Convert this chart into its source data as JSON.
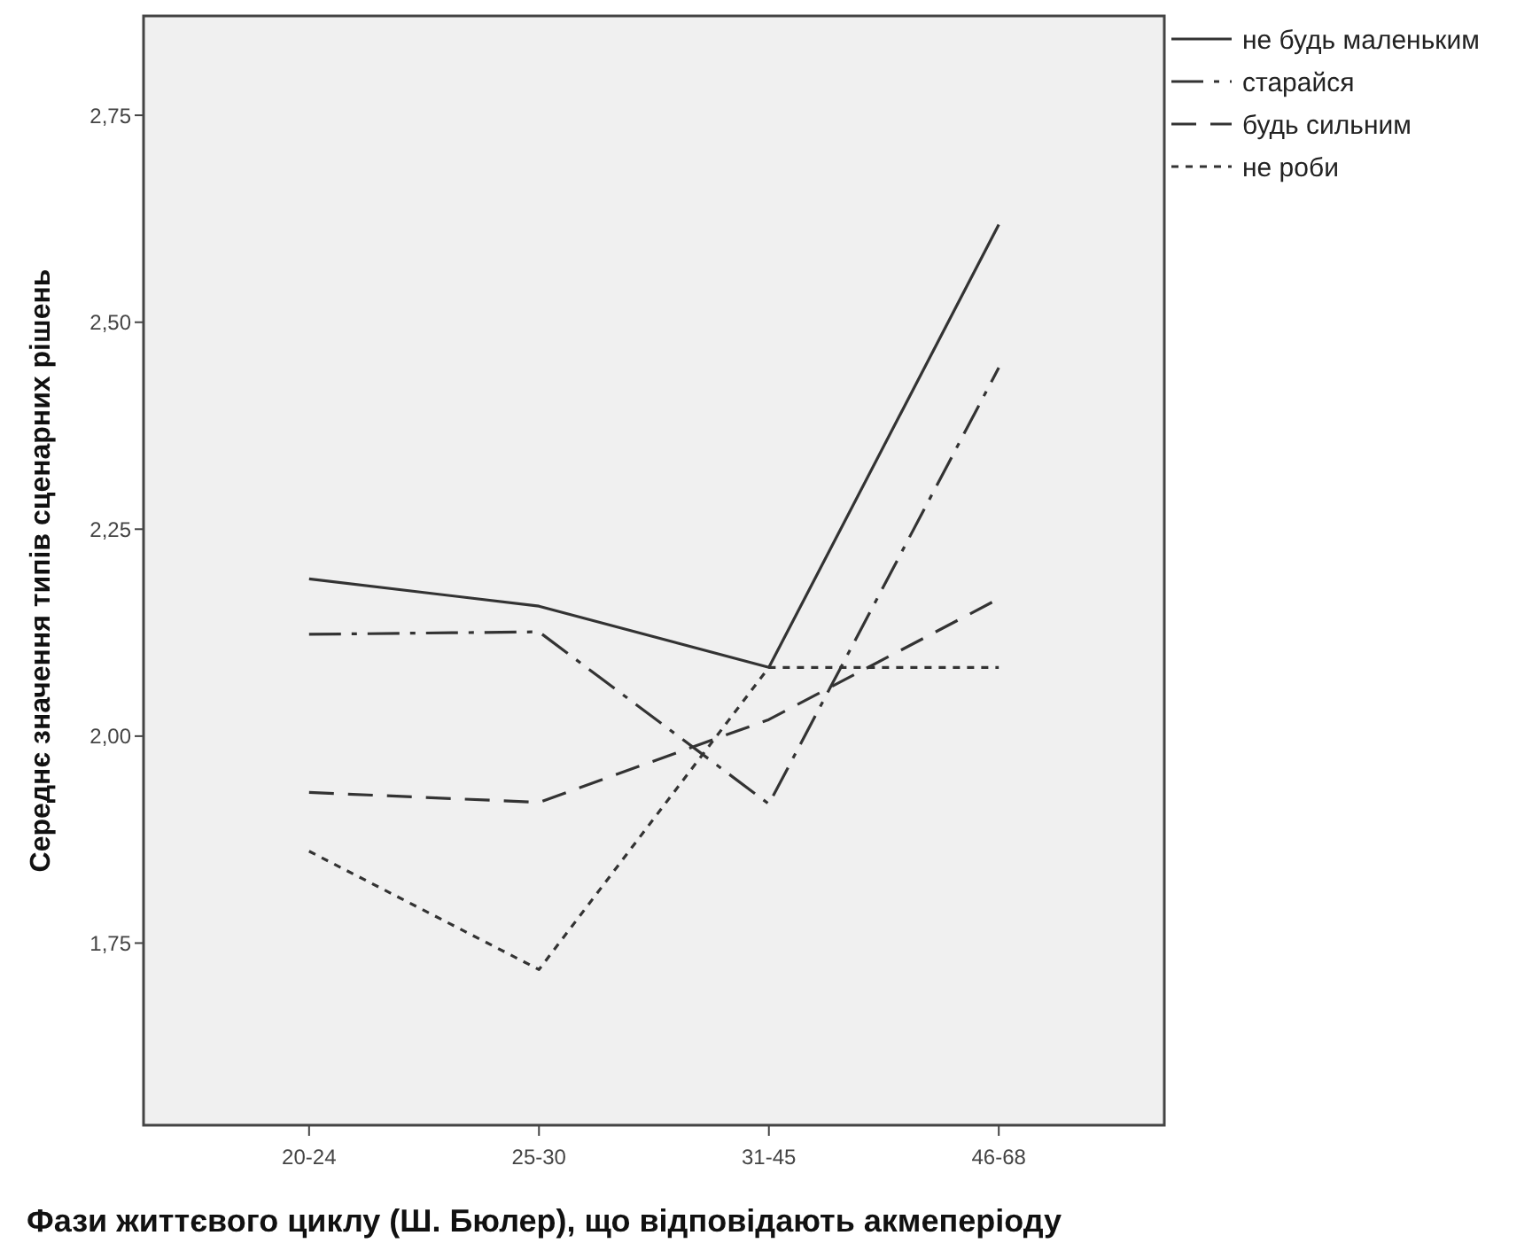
{
  "chart_data": {
    "type": "line",
    "xlabel": "Фази життєвого циклу (Ш. Бюлер), що відповідають акмеперіоду",
    "ylabel": "Середнє значення типів сценарних рішень",
    "categories": [
      "20-24",
      "25-30",
      "31-45",
      "46-68"
    ],
    "series": [
      {
        "name": "не будь маленьким",
        "color": "#333333",
        "line_style": "solid",
        "values": [
          2.19,
          2.157,
          2.083,
          2.618
        ]
      },
      {
        "name": "старайся",
        "color": "#333333",
        "line_style": "dashdot",
        "values": [
          2.123,
          2.126,
          1.918,
          2.445
        ]
      },
      {
        "name": "будь сильним",
        "color": "#333333",
        "line_style": "dashed",
        "values": [
          1.932,
          1.92,
          2.02,
          2.166
        ]
      },
      {
        "name": "не роби",
        "color": "#333333",
        "line_style": "dotted",
        "values": [
          1.861,
          1.718,
          2.083,
          2.083
        ]
      }
    ],
    "ylim": [
      1.53,
      2.87
    ],
    "yticks": [
      {
        "value": 1.75,
        "label": "1,75"
      },
      {
        "value": 2,
        "label": "2,00"
      },
      {
        "value": 2.25,
        "label": "2,25"
      },
      {
        "value": 2.5,
        "label": "2,50"
      },
      {
        "value": 2.75,
        "label": "2,75"
      }
    ],
    "grid": false,
    "legend": "top right",
    "marker": "none"
  }
}
